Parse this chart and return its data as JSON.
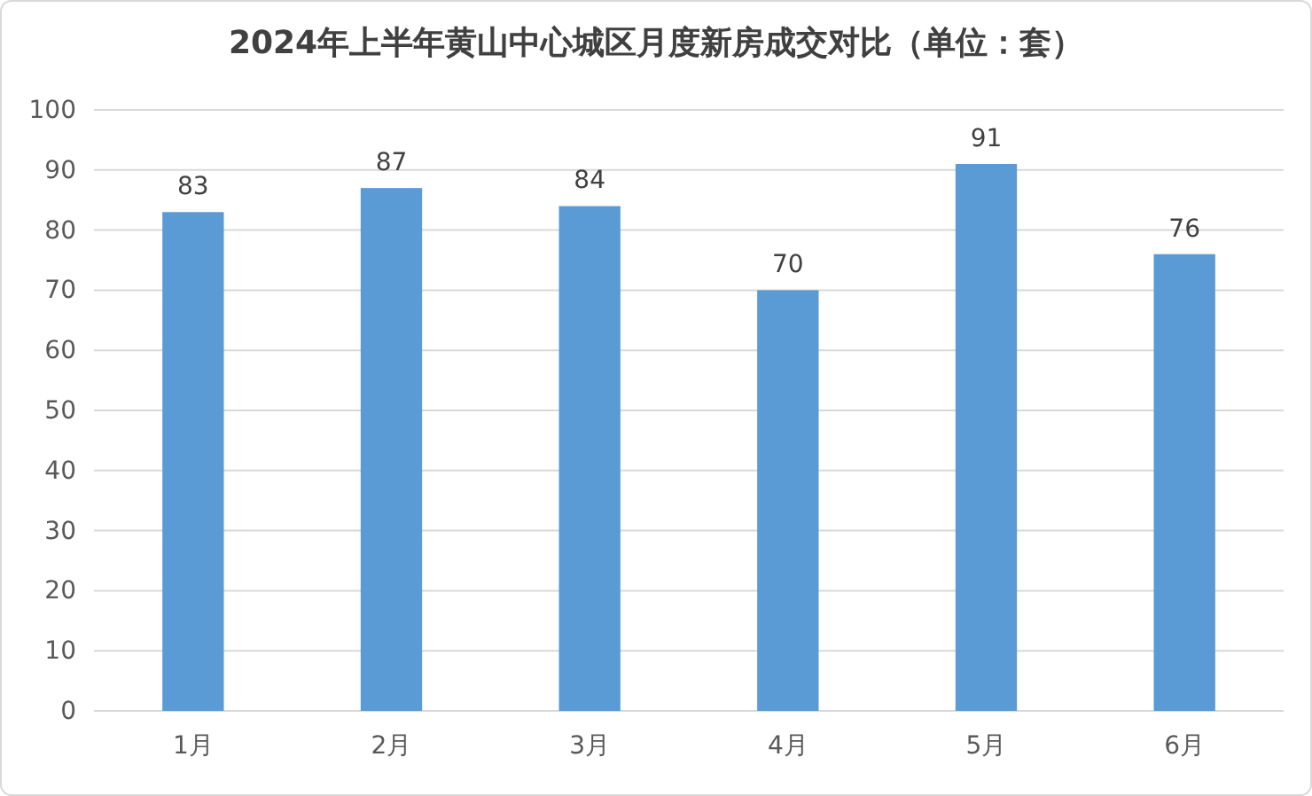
{
  "chart_data": {
    "type": "bar",
    "title": "2024年上半年黄山中心城区月度新房成交对比（单位：套）",
    "categories": [
      "1月",
      "2月",
      "3月",
      "4月",
      "5月",
      "6月"
    ],
    "values": [
      83,
      87,
      84,
      70,
      91,
      76
    ],
    "color": "#5b9bd5",
    "ylim": [
      0,
      100
    ],
    "yticks": [
      0,
      10,
      20,
      30,
      40,
      50,
      60,
      70,
      80,
      90,
      100
    ],
    "grid": "y",
    "data_labels": true
  }
}
